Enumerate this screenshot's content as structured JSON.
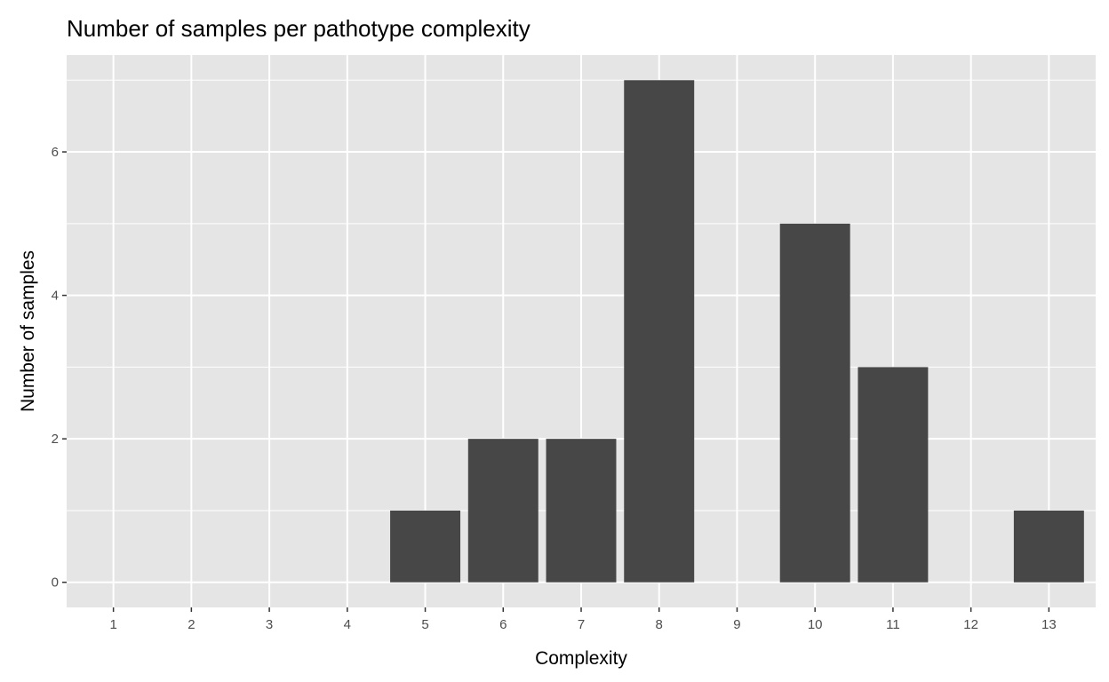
{
  "chart_data": {
    "type": "bar",
    "title": "Number of samples per pathotype complexity",
    "xlabel": "Complexity",
    "ylabel": "Number of samples",
    "categories": [
      1,
      2,
      3,
      4,
      5,
      6,
      7,
      8,
      9,
      10,
      11,
      12,
      13
    ],
    "x_tick_labels": [
      "1",
      "2",
      "3",
      "4",
      "5",
      "6",
      "7",
      "8",
      "9",
      "10",
      "11",
      "12",
      "13"
    ],
    "values": [
      0,
      0,
      0,
      0,
      1,
      2,
      2,
      7,
      0,
      5,
      3,
      0,
      1
    ],
    "y_ticks": [
      0,
      2,
      4,
      6
    ],
    "y_tick_labels": [
      "0",
      "2",
      "4",
      "6"
    ],
    "xlim": [
      0.4,
      13.6
    ],
    "ylim": [
      -0.35,
      7.35
    ],
    "grid": true,
    "bar_color": "#474747",
    "panel_color": "#e5e5e5",
    "grid_color": "#ffffff"
  }
}
